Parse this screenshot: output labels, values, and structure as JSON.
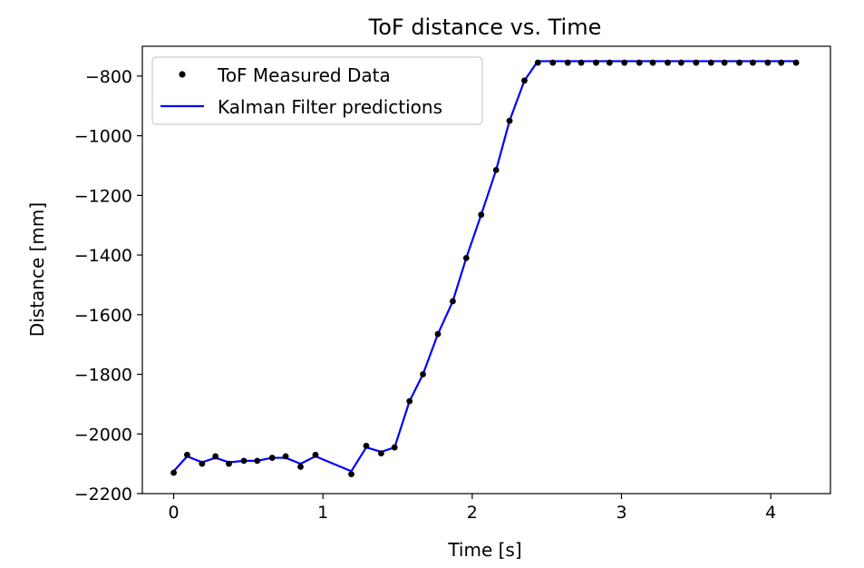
{
  "chart_data": {
    "type": "line",
    "title": "ToF distance vs. Time",
    "xlabel": "Time [s]",
    "ylabel": "Distance [mm]",
    "xlim": [
      -0.21,
      4.4
    ],
    "ylim": [
      -2200,
      -700
    ],
    "xticks": [
      0,
      1,
      2,
      3,
      4
    ],
    "xtick_labels": [
      "0",
      "1",
      "2",
      "3",
      "4"
    ],
    "yticks": [
      -2200,
      -2000,
      -1800,
      -1600,
      -1400,
      -1200,
      -1000,
      -800
    ],
    "ytick_labels": [
      "−2200",
      "−2000",
      "−1800",
      "−1600",
      "−1400",
      "−1200",
      "−1000",
      "−800"
    ],
    "grid": false,
    "legend_position": "upper-left",
    "series": [
      {
        "name": "ToF Measured Data",
        "kind": "scatter",
        "color": "#000000",
        "marker": "circle",
        "x": [
          0.0,
          0.09,
          0.19,
          0.28,
          0.37,
          0.47,
          0.56,
          0.66,
          0.75,
          0.85,
          0.95,
          1.19,
          1.29,
          1.39,
          1.48,
          1.58,
          1.67,
          1.77,
          1.87,
          1.96,
          2.06,
          2.16,
          2.25,
          2.35,
          2.44,
          2.54,
          2.64,
          2.73,
          2.83,
          2.92,
          3.02,
          3.12,
          3.21,
          3.31,
          3.4,
          3.5,
          3.6,
          3.69,
          3.79,
          3.88,
          3.98,
          4.07,
          4.17
        ],
        "y": [
          -2130,
          -2070,
          -2100,
          -2075,
          -2100,
          -2090,
          -2090,
          -2080,
          -2075,
          -2110,
          -2070,
          -2135,
          -2040,
          -2065,
          -2045,
          -1890,
          -1800,
          -1665,
          -1555,
          -1410,
          -1265,
          -1115,
          -950,
          -815,
          -755,
          -755,
          -755,
          -755,
          -755,
          -755,
          -755,
          -755,
          -755,
          -755,
          -755,
          -755,
          -755,
          -755,
          -755,
          -755,
          -755,
          -755,
          -755
        ]
      },
      {
        "name": "Kalman Filter predictions",
        "kind": "line",
        "color": "#0000ff",
        "x": [
          0.0,
          0.09,
          0.19,
          0.28,
          0.37,
          0.47,
          0.56,
          0.66,
          0.75,
          0.85,
          0.95,
          1.19,
          1.29,
          1.39,
          1.48,
          1.58,
          1.67,
          1.77,
          1.87,
          1.96,
          2.06,
          2.16,
          2.25,
          2.35,
          2.44,
          2.54,
          2.64,
          2.73,
          2.83,
          2.92,
          3.02,
          3.12,
          3.21,
          3.31,
          3.4,
          3.5,
          3.6,
          3.69,
          3.79,
          3.88,
          3.98,
          4.07,
          4.17
        ],
        "y": [
          -2125,
          -2075,
          -2095,
          -2080,
          -2095,
          -2090,
          -2090,
          -2080,
          -2080,
          -2100,
          -2075,
          -2125,
          -2045,
          -2060,
          -2045,
          -1890,
          -1800,
          -1665,
          -1555,
          -1410,
          -1265,
          -1115,
          -950,
          -815,
          -750,
          -750,
          -750,
          -750,
          -750,
          -750,
          -750,
          -750,
          -750,
          -750,
          -750,
          -750,
          -750,
          -750,
          -750,
          -750,
          -750,
          -750,
          -750
        ]
      }
    ]
  }
}
